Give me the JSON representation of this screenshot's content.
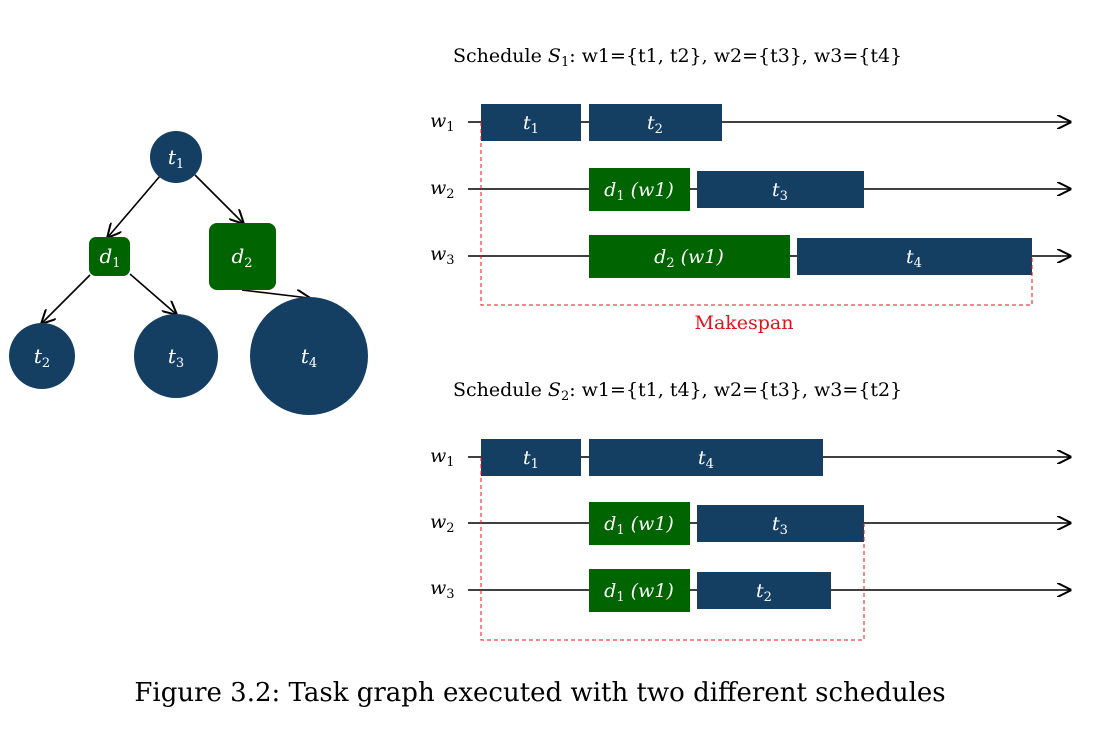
{
  "colors": {
    "task": "#143f63",
    "data": "#006400",
    "makespan": "#e8101a",
    "axis": "#000000"
  },
  "graph": {
    "nodes": {
      "t1": {
        "base": "t",
        "sub": "1"
      },
      "d1": {
        "base": "d",
        "sub": "1"
      },
      "d2": {
        "base": "d",
        "sub": "2"
      },
      "t2": {
        "base": "t",
        "sub": "2"
      },
      "t3": {
        "base": "t",
        "sub": "3"
      },
      "t4": {
        "base": "t",
        "sub": "4"
      }
    }
  },
  "schedule1": {
    "title": {
      "prefix": "Schedule ",
      "sym": "S",
      "sym_sub": "1",
      "sep": ": ",
      "assignment": "w1={t1, t2}, w2={t3}, w3={t4}"
    },
    "lanes": [
      {
        "base": "w",
        "sub": "1"
      },
      {
        "base": "w",
        "sub": "2"
      },
      {
        "base": "w",
        "sub": "3"
      }
    ],
    "bars": {
      "w1a": {
        "base": "t",
        "sub": "1",
        "rest": ""
      },
      "w1b": {
        "base": "t",
        "sub": "2",
        "rest": ""
      },
      "w2a": {
        "base": "d",
        "sub": "1",
        "rest": " (w1)"
      },
      "w2b": {
        "base": "t",
        "sub": "3",
        "rest": ""
      },
      "w3a": {
        "base": "d",
        "sub": "2",
        "rest": " (w1)"
      },
      "w3b": {
        "base": "t",
        "sub": "4",
        "rest": ""
      }
    },
    "makespan_label": "Makespan"
  },
  "schedule2": {
    "title": {
      "prefix": "Schedule ",
      "sym": "S",
      "sym_sub": "2",
      "sep": ": ",
      "assignment": "w1={t1, t4}, w2={t3}, w3={t2}"
    },
    "lanes": [
      {
        "base": "w",
        "sub": "1"
      },
      {
        "base": "w",
        "sub": "2"
      },
      {
        "base": "w",
        "sub": "3"
      }
    ],
    "bars": {
      "w1a": {
        "base": "t",
        "sub": "1",
        "rest": ""
      },
      "w1b": {
        "base": "t",
        "sub": "4",
        "rest": ""
      },
      "w2a": {
        "base": "d",
        "sub": "1",
        "rest": " (w1)"
      },
      "w2b": {
        "base": "t",
        "sub": "3",
        "rest": ""
      },
      "w3a": {
        "base": "d",
        "sub": "1",
        "rest": " (w1)"
      },
      "w3b": {
        "base": "t",
        "sub": "2",
        "rest": ""
      }
    }
  },
  "caption": "Figure 3.2: Task graph executed with two different schedules"
}
